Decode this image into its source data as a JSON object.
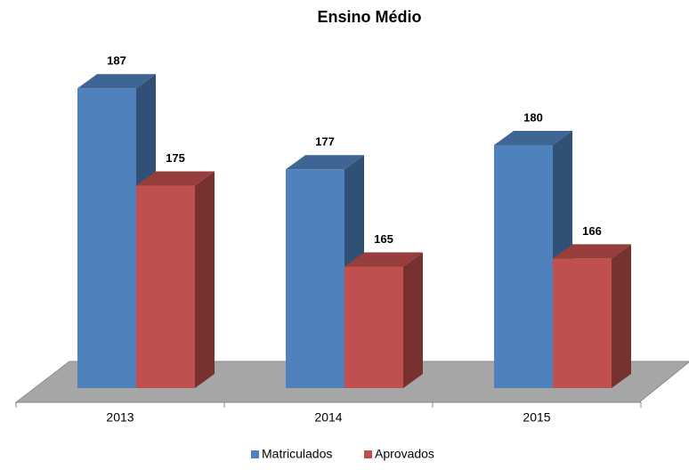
{
  "chart_data": {
    "type": "bar3d",
    "title": "Ensino Médio",
    "categories": [
      "2013",
      "2014",
      "2015"
    ],
    "series": [
      {
        "name": "Matriculados",
        "color": "#4f81bd",
        "values": [
          187,
          177,
          180
        ]
      },
      {
        "name": "Aprovados",
        "color": "#c0504d",
        "values": [
          175,
          165,
          166
        ]
      }
    ],
    "ylim": [
      150,
      190
    ],
    "legend": "bottom"
  }
}
